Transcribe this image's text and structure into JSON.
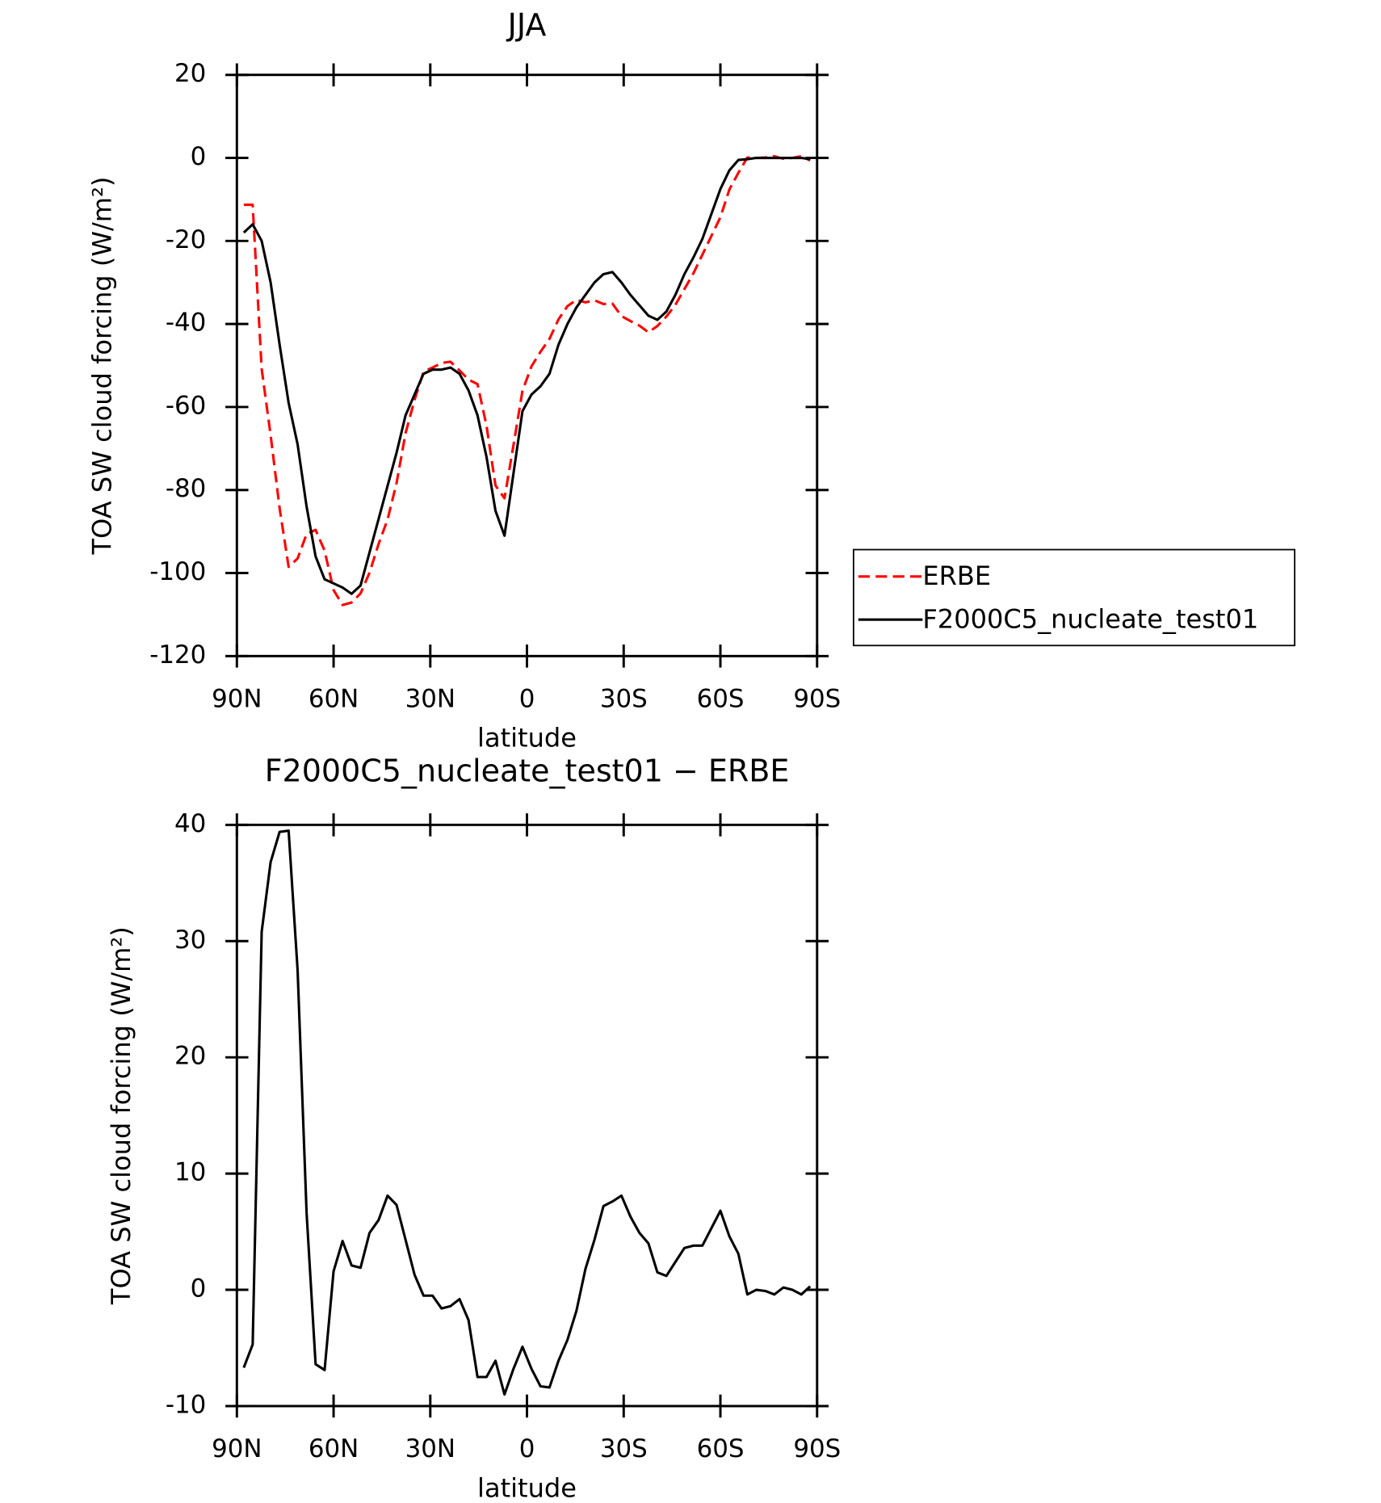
{
  "chart_data": [
    {
      "type": "line",
      "title": "JJA",
      "xlabel": "latitude",
      "ylabel": "TOA SW cloud forcing (W/m²)",
      "x": [
        87.86,
        85.1,
        82.31,
        79.53,
        76.74,
        73.95,
        71.16,
        68.37,
        65.58,
        62.79,
        60.0,
        57.21,
        54.42,
        51.63,
        48.84,
        46.04,
        43.25,
        40.46,
        37.67,
        34.88,
        32.09,
        29.3,
        26.51,
        23.72,
        20.93,
        18.14,
        15.35,
        12.56,
        9.77,
        6.98,
        4.19,
        1.4,
        -1.4,
        -4.19,
        -6.98,
        -9.77,
        -12.56,
        -15.35,
        -18.14,
        -20.93,
        -23.72,
        -26.51,
        -29.3,
        -32.09,
        -34.88,
        -37.67,
        -40.46,
        -43.25,
        -46.04,
        -48.84,
        -51.63,
        -54.42,
        -57.21,
        -60.0,
        -62.79,
        -65.58,
        -68.37,
        -71.16,
        -73.95,
        -76.74,
        -79.53,
        -82.31,
        -85.1,
        -87.86
      ],
      "xlim": [
        90,
        -90
      ],
      "xticks": [
        {
          "value": 90,
          "label": "90N"
        },
        {
          "value": 60,
          "label": "60N"
        },
        {
          "value": 30,
          "label": "30N"
        },
        0,
        {
          "value": -30,
          "label": "30S"
        },
        {
          "value": -60,
          "label": "60S"
        },
        {
          "value": -90,
          "label": "90S"
        }
      ],
      "ylim": [
        -120,
        20
      ],
      "yticks": [
        -120,
        -100,
        -80,
        -60,
        -40,
        -20,
        0,
        20
      ],
      "legend": "outside right",
      "series": [
        {
          "name": "ERBE",
          "color": "#ff0000",
          "linestyle": "dashed",
          "values": [
            -11.3,
            -11.3,
            -50.8,
            -66.8,
            -84.4,
            -98.5,
            -96.5,
            -90.6,
            -89.6,
            -94.6,
            -104.1,
            -107.7,
            -107.1,
            -104.9,
            -99.9,
            -93,
            -87.1,
            -78.3,
            -66.3,
            -58.3,
            -51.5,
            -50.5,
            -49.4,
            -49.1,
            -51.2,
            -53.4,
            -54.5,
            -64.5,
            -78.9,
            -82,
            -69.2,
            -56.1,
            -50.2,
            -46.7,
            -43.6,
            -38.9,
            -35.7,
            -34.2,
            -34.8,
            -34.3,
            -35.2,
            -35.1,
            -38.1,
            -39.3,
            -40.4,
            -42,
            -40.5,
            -38.2,
            -35.4,
            -31.6,
            -27.8,
            -23.3,
            -18.8,
            -14.3,
            -7.6,
            -3.6,
            0.1,
            0,
            0.1,
            0.4,
            -0.2,
            0,
            0.4,
            -0.6
          ]
        },
        {
          "name": "F2000C5_nucleate_test01",
          "color": "#000000",
          "linestyle": "solid",
          "values": [
            -18,
            -16,
            -20,
            -30,
            -45,
            -59,
            -69,
            -84,
            -96,
            -101.5,
            -102.5,
            -103.5,
            -105,
            -103,
            -95,
            -87,
            -79,
            -71,
            -62,
            -57,
            -52,
            -51,
            -51,
            -50.5,
            -52,
            -56,
            -62,
            -72,
            -85,
            -91,
            -76,
            -61,
            -57,
            -55,
            -52,
            -45,
            -40,
            -36,
            -33,
            -30,
            -28,
            -27.5,
            -30,
            -33,
            -35.5,
            -38,
            -39,
            -37,
            -33,
            -28,
            -24,
            -19.5,
            -13.5,
            -7.5,
            -3,
            -0.5,
            -0.3,
            0,
            0,
            0,
            0,
            0,
            0,
            -0.3
          ]
        }
      ]
    },
    {
      "type": "line",
      "title": "F2000C5_nucleate_test01 − ERBE",
      "xlabel": "latitude",
      "ylabel": "TOA SW cloud forcing (W/m²)",
      "x": [
        87.86,
        85.1,
        82.31,
        79.53,
        76.74,
        73.95,
        71.16,
        68.37,
        65.58,
        62.79,
        60.0,
        57.21,
        54.42,
        51.63,
        48.84,
        46.04,
        43.25,
        40.46,
        37.67,
        34.88,
        32.09,
        29.3,
        26.51,
        23.72,
        20.93,
        18.14,
        15.35,
        12.56,
        9.77,
        6.98,
        4.19,
        1.4,
        -1.4,
        -4.19,
        -6.98,
        -9.77,
        -12.56,
        -15.35,
        -18.14,
        -20.93,
        -23.72,
        -26.51,
        -29.3,
        -32.09,
        -34.88,
        -37.67,
        -40.46,
        -43.25,
        -46.04,
        -48.84,
        -51.63,
        -54.42,
        -57.21,
        -60.0,
        -62.79,
        -65.58,
        -68.37,
        -71.16,
        -73.95,
        -76.74,
        -79.53,
        -82.31,
        -85.1,
        -87.86
      ],
      "xlim": [
        90,
        -90
      ],
      "xticks": [
        {
          "value": 90,
          "label": "90N"
        },
        {
          "value": 60,
          "label": "60N"
        },
        {
          "value": 30,
          "label": "30N"
        },
        0,
        {
          "value": -30,
          "label": "30S"
        },
        {
          "value": -60,
          "label": "60S"
        },
        {
          "value": -90,
          "label": "90S"
        }
      ],
      "ylim": [
        -10,
        40
      ],
      "yticks": [
        -10,
        0,
        10,
        20,
        30,
        40
      ],
      "series": [
        {
          "color": "#000000",
          "linestyle": "solid",
          "values": [
            -6.7,
            -4.7,
            30.8,
            36.8,
            39.4,
            39.5,
            27.5,
            6.6,
            -6.4,
            -6.9,
            1.6,
            4.2,
            2.1,
            1.9,
            4.9,
            6.0,
            8.1,
            7.3,
            4.3,
            1.3,
            -0.5,
            -0.5,
            -1.6,
            -1.4,
            -0.8,
            -2.6,
            -7.5,
            -7.5,
            -6.1,
            -9,
            -6.8,
            -4.9,
            -6.8,
            -8.3,
            -8.4,
            -6.1,
            -4.3,
            -1.8,
            1.8,
            4.3,
            7.2,
            7.6,
            8.1,
            6.3,
            4.9,
            4.0,
            1.5,
            1.2,
            2.4,
            3.6,
            3.8,
            3.8,
            5.3,
            6.8,
            4.6,
            3.1,
            -0.4,
            0,
            -0.1,
            -0.4,
            0.2,
            0,
            -0.4,
            0.3
          ]
        }
      ]
    }
  ]
}
